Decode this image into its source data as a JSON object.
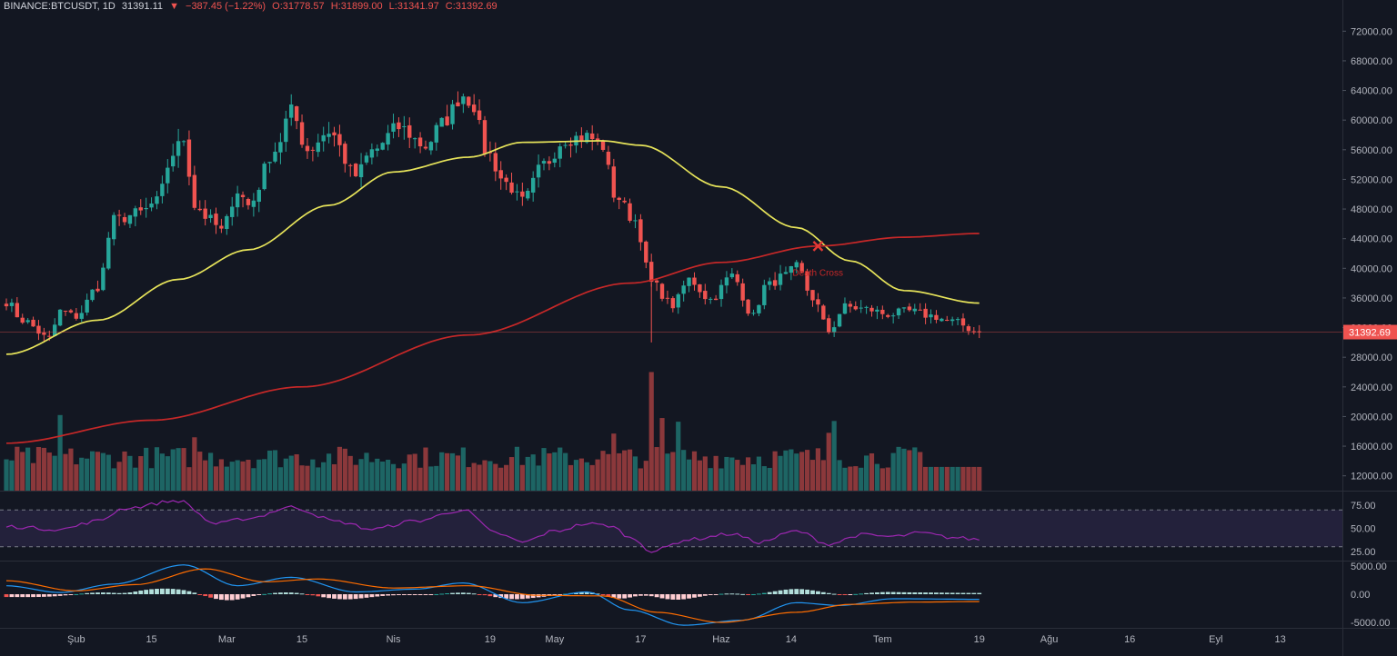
{
  "header": {
    "symbol": "BINANCE:BTCUSDT, 1D",
    "last": "31391.11",
    "change": "−387.45 (−1.22%)",
    "open": "O:31778.57",
    "high": "H:31899.00",
    "low": "L:31341.97",
    "close": "C:31392.69"
  },
  "colors": {
    "background": "#131722",
    "up": "#26a69a",
    "down": "#ef5350",
    "ma_fast": "#e6e35a",
    "ma_slow": "#c62828",
    "rsi": "#9c27b0",
    "macd": "#2196f3",
    "signal": "#ff6d00"
  },
  "chart_data": [
    {
      "type": "candlestick",
      "ylim": [
        10000,
        74000
      ],
      "yticks": [
        12000,
        16000,
        20000,
        24000,
        28000,
        32000,
        36000,
        40000,
        44000,
        48000,
        52000,
        56000,
        60000,
        64000,
        68000,
        72000
      ],
      "ytick_labels": [
        "12000.00",
        "16000.00",
        "20000.00",
        "24000.00",
        "28000.00",
        "32000.00",
        "36000.00",
        "40000.00",
        "44000.00",
        "48000.00",
        "52000.00",
        "56000.00",
        "60000.00",
        "64000.00",
        "68000.00",
        "72000.00"
      ],
      "last_price": 31392.69,
      "last_price_label": "31392.69",
      "annotation": "Death Cross",
      "annotation_date": "2021-06-19",
      "x_start": "2021-01-19",
      "x_end": "2021-07-19",
      "xtick_labels": [
        {
          "date": "2021-02-01",
          "label": "Şub"
        },
        {
          "date": "2021-02-15",
          "label": "15"
        },
        {
          "date": "2021-03-01",
          "label": "Mar"
        },
        {
          "date": "2021-03-15",
          "label": "15"
        },
        {
          "date": "2021-04-01",
          "label": "Nis"
        },
        {
          "date": "2021-04-19",
          "label": "19"
        },
        {
          "date": "2021-05-01",
          "label": "May"
        },
        {
          "date": "2021-05-17",
          "label": "17"
        },
        {
          "date": "2021-06-01",
          "label": "Haz"
        },
        {
          "date": "2021-06-14",
          "label": "14"
        },
        {
          "date": "2021-07-01",
          "label": "Tem"
        },
        {
          "date": "2021-07-19",
          "label": "19"
        },
        {
          "date": "2021-08-01",
          "label": "Ağu"
        },
        {
          "date": "2021-08-16",
          "label": "16"
        },
        {
          "date": "2021-09-01",
          "label": "Eyl"
        },
        {
          "date": "2021-09-13",
          "label": "13"
        }
      ],
      "close_anchors": [
        [
          "2021-01-19",
          35500
        ],
        [
          "2021-01-22",
          33000
        ],
        [
          "2021-01-27",
          30500
        ],
        [
          "2021-01-29",
          34200
        ],
        [
          "2021-02-01",
          33500
        ],
        [
          "2021-02-05",
          37500
        ],
        [
          "2021-02-08",
          46500
        ],
        [
          "2021-02-13",
          47500
        ],
        [
          "2021-02-16",
          49000
        ],
        [
          "2021-02-19",
          55500
        ],
        [
          "2021-02-21",
          57500
        ],
        [
          "2021-02-23",
          48500
        ],
        [
          "2021-02-26",
          46500
        ],
        [
          "2021-02-28",
          45000
        ],
        [
          "2021-03-03",
          50500
        ],
        [
          "2021-03-05",
          48500
        ],
        [
          "2021-03-10",
          56000
        ],
        [
          "2021-03-13",
          61200
        ],
        [
          "2021-03-16",
          56000
        ],
        [
          "2021-03-20",
          58500
        ],
        [
          "2021-03-25",
          52500
        ],
        [
          "2021-03-28",
          55800
        ],
        [
          "2021-04-02",
          59000
        ],
        [
          "2021-04-07",
          56500
        ],
        [
          "2021-04-10",
          59500
        ],
        [
          "2021-04-14",
          63400
        ],
        [
          "2021-04-16",
          62000
        ],
        [
          "2021-04-18",
          56000
        ],
        [
          "2021-04-22",
          51500
        ],
        [
          "2021-04-25",
          49000
        ],
        [
          "2021-04-29",
          54000
        ],
        [
          "2021-05-03",
          57500
        ],
        [
          "2021-05-07",
          57800
        ],
        [
          "2021-05-10",
          56500
        ],
        [
          "2021-05-12",
          50000
        ],
        [
          "2021-05-16",
          46500
        ],
        [
          "2021-05-19",
          38000
        ],
        [
          "2021-05-23",
          35000
        ],
        [
          "2021-05-26",
          38500
        ],
        [
          "2021-05-30",
          35800
        ],
        [
          "2021-06-03",
          39000
        ],
        [
          "2021-06-07",
          33500
        ],
        [
          "2021-06-09",
          37500
        ],
        [
          "2021-06-13",
          39000
        ],
        [
          "2021-06-15",
          40200
        ],
        [
          "2021-06-18",
          36000
        ],
        [
          "2021-06-21",
          31500
        ],
        [
          "2021-06-24",
          34800
        ],
        [
          "2021-06-28",
          34500
        ],
        [
          "2021-07-02",
          33800
        ],
        [
          "2021-07-06",
          34200
        ],
        [
          "2021-07-10",
          33600
        ],
        [
          "2021-07-14",
          32800
        ],
        [
          "2021-07-19",
          31392
        ]
      ],
      "ma_fast_anchors": [
        [
          "2021-01-19",
          28400
        ],
        [
          "2021-02-05",
          33000
        ],
        [
          "2021-02-20",
          38500
        ],
        [
          "2021-03-05",
          42500
        ],
        [
          "2021-03-20",
          48500
        ],
        [
          "2021-04-01",
          53000
        ],
        [
          "2021-04-15",
          55000
        ],
        [
          "2021-04-25",
          57000
        ],
        [
          "2021-05-10",
          57200
        ],
        [
          "2021-05-17",
          56600
        ],
        [
          "2021-06-01",
          51000
        ],
        [
          "2021-06-15",
          45500
        ],
        [
          "2021-06-25",
          41000
        ],
        [
          "2021-07-05",
          37000
        ],
        [
          "2021-07-19",
          35300
        ]
      ],
      "ma_slow_anchors": [
        [
          "2021-01-19",
          16400
        ],
        [
          "2021-02-15",
          19500
        ],
        [
          "2021-03-15",
          24000
        ],
        [
          "2021-04-15",
          31000
        ],
        [
          "2021-05-15",
          38000
        ],
        [
          "2021-06-01",
          40800
        ],
        [
          "2021-06-19",
          43000
        ],
        [
          "2021-07-05",
          44200
        ],
        [
          "2021-07-19",
          44700
        ]
      ],
      "volume_spikes": [
        [
          "2021-01-29",
          20200
        ],
        [
          "2021-05-19",
          26000
        ],
        [
          "2021-05-21",
          19800
        ],
        [
          "2021-05-24",
          19300
        ],
        [
          "2021-06-22",
          19400
        ],
        [
          "2021-02-23",
          17200
        ],
        [
          "2021-06-21",
          17800
        ],
        [
          "2021-05-12",
          17700
        ]
      ]
    },
    {
      "type": "line",
      "name": "RSI",
      "ylim": [
        15,
        90
      ],
      "yticks": [
        25,
        50,
        75
      ],
      "ytick_labels": [
        "25.00",
        "50.00",
        "75.00"
      ],
      "levels": [
        30,
        70
      ],
      "anchors": [
        [
          "2021-01-19",
          52
        ],
        [
          "2021-01-29",
          49
        ],
        [
          "2021-02-05",
          58
        ],
        [
          "2021-02-10",
          72
        ],
        [
          "2021-02-20",
          80
        ],
        [
          "2021-02-27",
          55
        ],
        [
          "2021-03-05",
          61
        ],
        [
          "2021-03-13",
          73
        ],
        [
          "2021-03-22",
          57
        ],
        [
          "2021-03-28",
          49
        ],
        [
          "2021-04-05",
          58
        ],
        [
          "2021-04-14",
          70
        ],
        [
          "2021-04-20",
          45
        ],
        [
          "2021-04-25",
          35
        ],
        [
          "2021-05-01",
          47
        ],
        [
          "2021-05-07",
          55
        ],
        [
          "2021-05-11",
          53
        ],
        [
          "2021-05-16",
          38
        ],
        [
          "2021-05-19",
          25
        ],
        [
          "2021-05-26",
          38
        ],
        [
          "2021-06-03",
          44
        ],
        [
          "2021-06-08",
          35
        ],
        [
          "2021-06-15",
          47
        ],
        [
          "2021-06-21",
          33
        ],
        [
          "2021-06-27",
          43
        ],
        [
          "2021-07-03",
          41
        ],
        [
          "2021-07-08",
          45
        ],
        [
          "2021-07-14",
          40
        ],
        [
          "2021-07-19",
          38
        ]
      ]
    },
    {
      "type": "line",
      "name": "MACD",
      "ylim": [
        -5800,
        5800
      ],
      "yticks": [
        -5000,
        0,
        5000
      ],
      "ytick_labels": [
        "-5000.00",
        "0.00",
        "5000.00"
      ],
      "macd_anchors": [
        [
          "2021-01-19",
          1500
        ],
        [
          "2021-01-29",
          300
        ],
        [
          "2021-02-08",
          1800
        ],
        [
          "2021-02-21",
          5200
        ],
        [
          "2021-03-03",
          1500
        ],
        [
          "2021-03-13",
          3000
        ],
        [
          "2021-03-25",
          400
        ],
        [
          "2021-04-05",
          900
        ],
        [
          "2021-04-14",
          2000
        ],
        [
          "2021-04-25",
          -1500
        ],
        [
          "2021-05-07",
          400
        ],
        [
          "2021-05-15",
          -2800
        ],
        [
          "2021-05-25",
          -5500
        ],
        [
          "2021-06-05",
          -4600
        ],
        [
          "2021-06-15",
          -1500
        ],
        [
          "2021-06-23",
          -2000
        ],
        [
          "2021-07-03",
          -800
        ],
        [
          "2021-07-19",
          -900
        ]
      ],
      "signal_anchors": [
        [
          "2021-01-19",
          2400
        ],
        [
          "2021-02-01",
          600
        ],
        [
          "2021-02-12",
          1700
        ],
        [
          "2021-02-25",
          4500
        ],
        [
          "2021-03-08",
          2200
        ],
        [
          "2021-03-18",
          2700
        ],
        [
          "2021-04-01",
          1100
        ],
        [
          "2021-04-15",
          1500
        ],
        [
          "2021-04-28",
          -200
        ],
        [
          "2021-05-10",
          -300
        ],
        [
          "2021-05-20",
          -3200
        ],
        [
          "2021-06-01",
          -5000
        ],
        [
          "2021-06-15",
          -3200
        ],
        [
          "2021-06-25",
          -1800
        ],
        [
          "2021-07-07",
          -1400
        ],
        [
          "2021-07-19",
          -1300
        ]
      ]
    }
  ]
}
